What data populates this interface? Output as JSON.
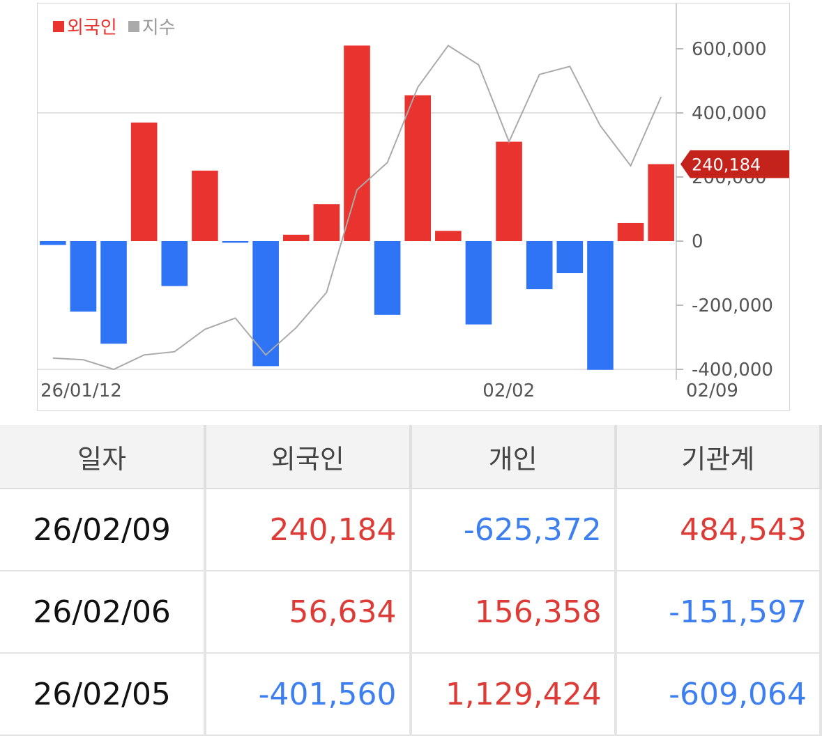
{
  "chart_data": {
    "type": "bar",
    "legend": [
      {
        "name": "외국인",
        "color": "#e8332e"
      },
      {
        "name": "지수",
        "color": "#aaaaaa"
      }
    ],
    "series": [
      {
        "name": "외국인",
        "kind": "bar",
        "positive_color": "#e8332e",
        "negative_color": "#2f74f5",
        "values": [
          -12000,
          -220000,
          -320000,
          370000,
          -140000,
          220000,
          -5000,
          -390000,
          20000,
          115000,
          610000,
          -230000,
          455000,
          32000,
          -260000,
          310000,
          -150000,
          -100000,
          -401560,
          56634,
          240184
        ]
      },
      {
        "name": "지수",
        "kind": "line",
        "color": "#aaaaaa",
        "values": [
          -365000,
          -370000,
          -400000,
          -355000,
          -345000,
          -275000,
          -240000,
          -355000,
          -270000,
          -160000,
          160000,
          245000,
          480000,
          610000,
          550000,
          310000,
          520000,
          545000,
          360000,
          235000,
          450000
        ]
      }
    ],
    "ylim": [
      -400000,
      700000
    ],
    "y_ticks": [
      600000,
      400000,
      200000,
      0,
      -200000,
      -400000
    ],
    "y_tick_labels": [
      "600,000",
      "400,000",
      "200,000",
      "0",
      "-200,000",
      "-400,000"
    ],
    "x_tick_labels": [
      {
        "index": 0,
        "label": "26/01/12"
      },
      {
        "index": 15,
        "label": "02/02"
      },
      {
        "index": 21,
        "label": "02/09"
      }
    ],
    "last_value": 240184,
    "last_value_label": "240,184",
    "callout_color": "#c4231c",
    "grid": "horizontal"
  },
  "table": {
    "headers": [
      "일자",
      "외국인",
      "개인",
      "기관계"
    ],
    "rows": [
      {
        "date": "26/02/09",
        "foreign": "240,184",
        "individual": "-625,372",
        "institution": "484,543"
      },
      {
        "date": "26/02/06",
        "foreign": "56,634",
        "individual": "156,358",
        "institution": "-151,597"
      },
      {
        "date": "26/02/05",
        "foreign": "-401,560",
        "individual": "1,129,424",
        "institution": "-609,064"
      }
    ]
  }
}
